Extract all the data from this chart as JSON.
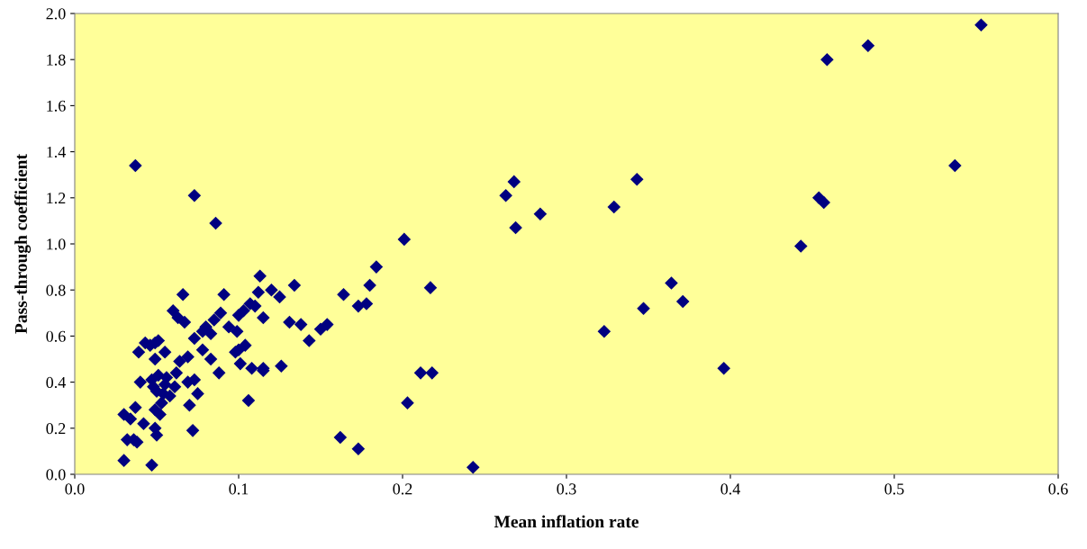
{
  "chart_data": {
    "type": "scatter",
    "xlabel": "Mean inflation rate",
    "ylabel": "Pass-through coefficient",
    "marker": "diamond",
    "grid": false,
    "xlim": [
      0,
      0.6
    ],
    "ylim": [
      0,
      2
    ],
    "xticks": [
      {
        "value": 0,
        "label": "0.0"
      },
      {
        "value": 0.1,
        "label": "0.1"
      },
      {
        "value": 0.2,
        "label": "0.2"
      },
      {
        "value": 0.3,
        "label": "0.3"
      },
      {
        "value": 0.4,
        "label": "0.4"
      },
      {
        "value": 0.5,
        "label": "0.5"
      },
      {
        "value": 0.6,
        "label": "0.6"
      }
    ],
    "yticks": [
      {
        "value": 0,
        "label": "0.0"
      },
      {
        "value": 0.2,
        "label": "0.2"
      },
      {
        "value": 0.4,
        "label": "0.4"
      },
      {
        "value": 0.6,
        "label": "0.6"
      },
      {
        "value": 0.8,
        "label": "0.8"
      },
      {
        "value": 1.0,
        "label": "1.0"
      },
      {
        "value": 1.2,
        "label": "1.2"
      },
      {
        "value": 1.4,
        "label": "1.4"
      },
      {
        "value": 1.6,
        "label": "1.6"
      },
      {
        "value": 1.8,
        "label": "1.8"
      },
      {
        "value": 2.0,
        "label": "2.0"
      }
    ],
    "series": [
      {
        "color": "#000080",
        "x": [
          0.553,
          0.484,
          0.459,
          0.537,
          0.454,
          0.457,
          0.443,
          0.396,
          0.364,
          0.347,
          0.371,
          0.343,
          0.329,
          0.323,
          0.284,
          0.268,
          0.263,
          0.269,
          0.243,
          0.201,
          0.203,
          0.217,
          0.211,
          0.218,
          0.184,
          0.18,
          0.178,
          0.173,
          0.173,
          0.162,
          0.164,
          0.154,
          0.15,
          0.143,
          0.138,
          0.134,
          0.131,
          0.126,
          0.125,
          0.12,
          0.115,
          0.115,
          0.115,
          0.113,
          0.112,
          0.11,
          0.107,
          0.103,
          0.108,
          0.106,
          0.104,
          0.101,
          0.1,
          0.1,
          0.098,
          0.099,
          0.094,
          0.091,
          0.089,
          0.088,
          0.086,
          0.085,
          0.083,
          0.083,
          0.08,
          0.078,
          0.078,
          0.075,
          0.073,
          0.073,
          0.072,
          0.073,
          0.07,
          0.069,
          0.069,
          0.066,
          0.067,
          0.063,
          0.06,
          0.064,
          0.062,
          0.061,
          0.058,
          0.056,
          0.055,
          0.054,
          0.055,
          0.053,
          0.052,
          0.051,
          0.05,
          0.049,
          0.049,
          0.051,
          0.046,
          0.048,
          0.049,
          0.05,
          0.049,
          0.047,
          0.047,
          0.043,
          0.042,
          0.04,
          0.039,
          0.038,
          0.037,
          0.037,
          0.036,
          0.034,
          0.032,
          0.03,
          0.03
        ],
        "values": [
          1.95,
          1.86,
          1.8,
          1.34,
          1.2,
          1.18,
          0.99,
          0.46,
          0.83,
          0.72,
          0.75,
          1.28,
          1.16,
          0.62,
          1.13,
          1.27,
          1.21,
          1.07,
          0.03,
          1.02,
          0.31,
          0.81,
          0.44,
          0.44,
          0.9,
          0.82,
          0.74,
          0.73,
          0.11,
          0.16,
          0.78,
          0.65,
          0.63,
          0.58,
          0.65,
          0.82,
          0.66,
          0.47,
          0.77,
          0.8,
          0.68,
          0.46,
          0.45,
          0.86,
          0.79,
          0.73,
          0.74,
          0.71,
          0.46,
          0.32,
          0.56,
          0.48,
          0.69,
          0.54,
          0.53,
          0.62,
          0.64,
          0.78,
          0.7,
          0.44,
          1.09,
          0.67,
          0.61,
          0.5,
          0.64,
          0.54,
          0.62,
          0.35,
          1.21,
          0.59,
          0.19,
          0.41,
          0.3,
          0.4,
          0.51,
          0.78,
          0.66,
          0.68,
          0.71,
          0.49,
          0.44,
          0.38,
          0.34,
          0.42,
          0.39,
          0.35,
          0.53,
          0.31,
          0.26,
          0.43,
          0.36,
          0.5,
          0.57,
          0.58,
          0.56,
          0.38,
          0.28,
          0.17,
          0.2,
          0.04,
          0.41,
          0.57,
          0.22,
          0.4,
          0.53,
          0.14,
          1.34,
          0.29,
          0.15,
          0.24,
          0.15,
          0.26,
          0.06
        ]
      }
    ]
  }
}
